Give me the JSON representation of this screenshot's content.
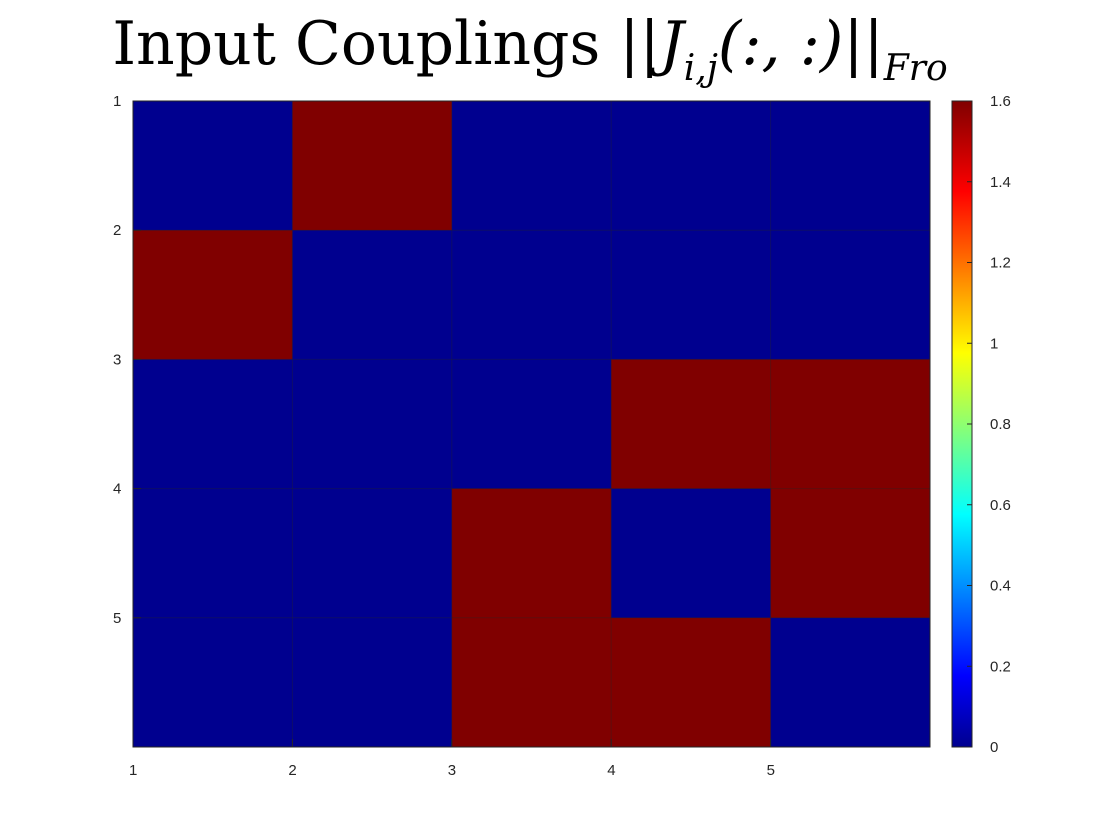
{
  "chart_data": {
    "type": "heatmap",
    "title": {
      "text": "Input Couplings ",
      "math": "||J",
      "math_sub": "i,j",
      "math_args": "(:, :)||",
      "norm_sub": "Fro"
    },
    "x_ticks": [
      "1",
      "2",
      "3",
      "4",
      "5"
    ],
    "y_ticks": [
      "1",
      "2",
      "3",
      "4",
      "5"
    ],
    "matrix": [
      [
        0,
        1.6,
        0,
        0,
        0
      ],
      [
        1.6,
        0,
        0,
        0,
        0
      ],
      [
        0,
        0,
        0,
        1.6,
        1.6
      ],
      [
        0,
        0,
        1.6,
        0,
        1.6
      ],
      [
        0,
        0,
        1.6,
        1.6,
        0
      ]
    ],
    "colorbar": {
      "colormap": "jet",
      "range": [
        0,
        1.6
      ],
      "ticks": [
        "0",
        "0.2",
        "0.4",
        "0.6",
        "0.8",
        "1",
        "1.2",
        "1.4",
        "1.6"
      ]
    },
    "colors": {
      "low": "#00008f",
      "high": "#800000",
      "grid": "#262626"
    }
  }
}
